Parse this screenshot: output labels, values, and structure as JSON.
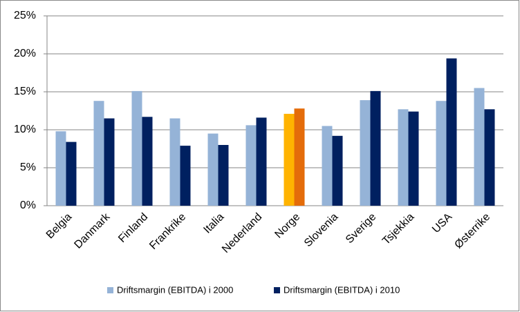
{
  "chart_data": {
    "type": "bar",
    "categories": [
      "Belgia",
      "Danmark",
      "Finland",
      "Frankrike",
      "Italia",
      "Nederland",
      "Norge",
      "Slovenia",
      "Sverige",
      "Tsjekkia",
      "USA",
      "Østerrike"
    ],
    "series": [
      {
        "name": "Driftsmargin (EBITDA) i 2000",
        "color": "#95b3d7",
        "colors": [
          "#95b3d7",
          "#95b3d7",
          "#95b3d7",
          "#95b3d7",
          "#95b3d7",
          "#95b3d7",
          "#ffb300",
          "#95b3d7",
          "#95b3d7",
          "#95b3d7",
          "#95b3d7",
          "#95b3d7"
        ],
        "values": [
          9.8,
          13.8,
          15.1,
          11.5,
          9.5,
          10.6,
          12.1,
          10.5,
          13.9,
          12.7,
          13.8,
          15.5
        ]
      },
      {
        "name": "Driftsmargin (EBITDA) i 2010",
        "color": "#002060",
        "colors": [
          "#002060",
          "#002060",
          "#002060",
          "#002060",
          "#002060",
          "#002060",
          "#e46c0a",
          "#002060",
          "#002060",
          "#002060",
          "#002060",
          "#002060"
        ],
        "values": [
          8.4,
          11.5,
          11.7,
          7.9,
          8.0,
          11.6,
          12.8,
          9.2,
          15.1,
          12.4,
          19.4,
          12.7
        ]
      }
    ],
    "ylim": [
      0,
      25
    ],
    "yticks": [
      {
        "value": 0,
        "label": "0%"
      },
      {
        "value": 5,
        "label": "5%"
      },
      {
        "value": 10,
        "label": "10%"
      },
      {
        "value": 15,
        "label": "15%"
      },
      {
        "value": 20,
        "label": "20%"
      },
      {
        "value": 25,
        "label": "25%"
      }
    ],
    "grid": true,
    "legend": "bottom"
  }
}
